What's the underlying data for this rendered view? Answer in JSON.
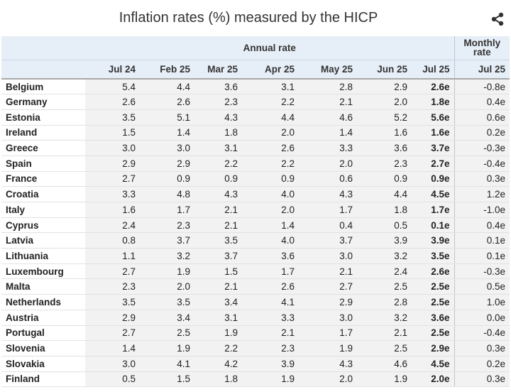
{
  "chart_data": {
    "type": "table",
    "title": "Inflation rates (%) measured by the HICP",
    "group_headers": [
      "Annual rate",
      "Monthly rate"
    ],
    "columns": [
      "Jul 24",
      "Feb 25",
      "Mar 25",
      "Apr 25",
      "May 25",
      "Jun 25",
      "Jul 25",
      "Jul 25"
    ],
    "rows": [
      {
        "country": "Belgium",
        "values": [
          "5.4",
          "4.4",
          "3.6",
          "3.1",
          "2.8",
          "2.9",
          "2.6e",
          "-0.8e"
        ]
      },
      {
        "country": "Germany",
        "values": [
          "2.6",
          "2.6",
          "2.3",
          "2.2",
          "2.1",
          "2.0",
          "1.8e",
          "0.4e"
        ]
      },
      {
        "country": "Estonia",
        "values": [
          "3.5",
          "5.1",
          "4.3",
          "4.4",
          "4.6",
          "5.2",
          "5.6e",
          "0.6e"
        ]
      },
      {
        "country": "Ireland",
        "values": [
          "1.5",
          "1.4",
          "1.8",
          "2.0",
          "1.4",
          "1.6",
          "1.6e",
          "0.2e"
        ]
      },
      {
        "country": "Greece",
        "values": [
          "3.0",
          "3.0",
          "3.1",
          "2.6",
          "3.3",
          "3.6",
          "3.7e",
          "-0.3e"
        ]
      },
      {
        "country": "Spain",
        "values": [
          "2.9",
          "2.9",
          "2.2",
          "2.2",
          "2.0",
          "2.3",
          "2.7e",
          "-0.4e"
        ]
      },
      {
        "country": "France",
        "values": [
          "2.7",
          "0.9",
          "0.9",
          "0.9",
          "0.6",
          "0.9",
          "0.9e",
          "0.3e"
        ]
      },
      {
        "country": "Croatia",
        "values": [
          "3.3",
          "4.8",
          "4.3",
          "4.0",
          "4.3",
          "4.4",
          "4.5e",
          "1.2e"
        ]
      },
      {
        "country": "Italy",
        "values": [
          "1.6",
          "1.7",
          "2.1",
          "2.0",
          "1.7",
          "1.8",
          "1.7e",
          "-1.0e"
        ]
      },
      {
        "country": "Cyprus",
        "values": [
          "2.4",
          "2.3",
          "2.1",
          "1.4",
          "0.4",
          "0.5",
          "0.1e",
          "0.4e"
        ]
      },
      {
        "country": "Latvia",
        "values": [
          "0.8",
          "3.7",
          "3.5",
          "4.0",
          "3.7",
          "3.9",
          "3.9e",
          "0.1e"
        ]
      },
      {
        "country": "Lithuania",
        "values": [
          "1.1",
          "3.2",
          "3.7",
          "3.6",
          "3.0",
          "3.2",
          "3.5e",
          "0.1e"
        ]
      },
      {
        "country": "Luxembourg",
        "values": [
          "2.7",
          "1.9",
          "1.5",
          "1.7",
          "2.1",
          "2.4",
          "2.6e",
          "-0.3e"
        ]
      },
      {
        "country": "Malta",
        "values": [
          "2.3",
          "2.0",
          "2.1",
          "2.6",
          "2.7",
          "2.5",
          "2.5e",
          "0.5e"
        ]
      },
      {
        "country": "Netherlands",
        "values": [
          "3.5",
          "3.5",
          "3.4",
          "4.1",
          "2.9",
          "2.8",
          "2.5e",
          "1.0e"
        ]
      },
      {
        "country": "Austria",
        "values": [
          "2.9",
          "3.4",
          "3.1",
          "3.3",
          "3.0",
          "3.2",
          "3.6e",
          "0.0e"
        ]
      },
      {
        "country": "Portugal",
        "values": [
          "2.7",
          "2.5",
          "1.9",
          "2.1",
          "1.7",
          "2.1",
          "2.5e",
          "-0.4e"
        ]
      },
      {
        "country": "Slovenia",
        "values": [
          "1.4",
          "1.9",
          "2.2",
          "2.3",
          "1.9",
          "2.5",
          "2.9e",
          "0.3e"
        ]
      },
      {
        "country": "Slovakia",
        "values": [
          "3.0",
          "4.1",
          "4.2",
          "3.9",
          "4.3",
          "4.6",
          "4.5e",
          "0.2e"
        ]
      },
      {
        "country": "Finland",
        "values": [
          "0.5",
          "1.5",
          "1.8",
          "1.9",
          "2.0",
          "1.9",
          "2.0e",
          "0.3e"
        ]
      }
    ]
  },
  "toolbar": {
    "share_icon": "share-icon"
  },
  "colors": {
    "header_bg": "#e6eef7",
    "cell_bg": "#f2f2f2"
  }
}
